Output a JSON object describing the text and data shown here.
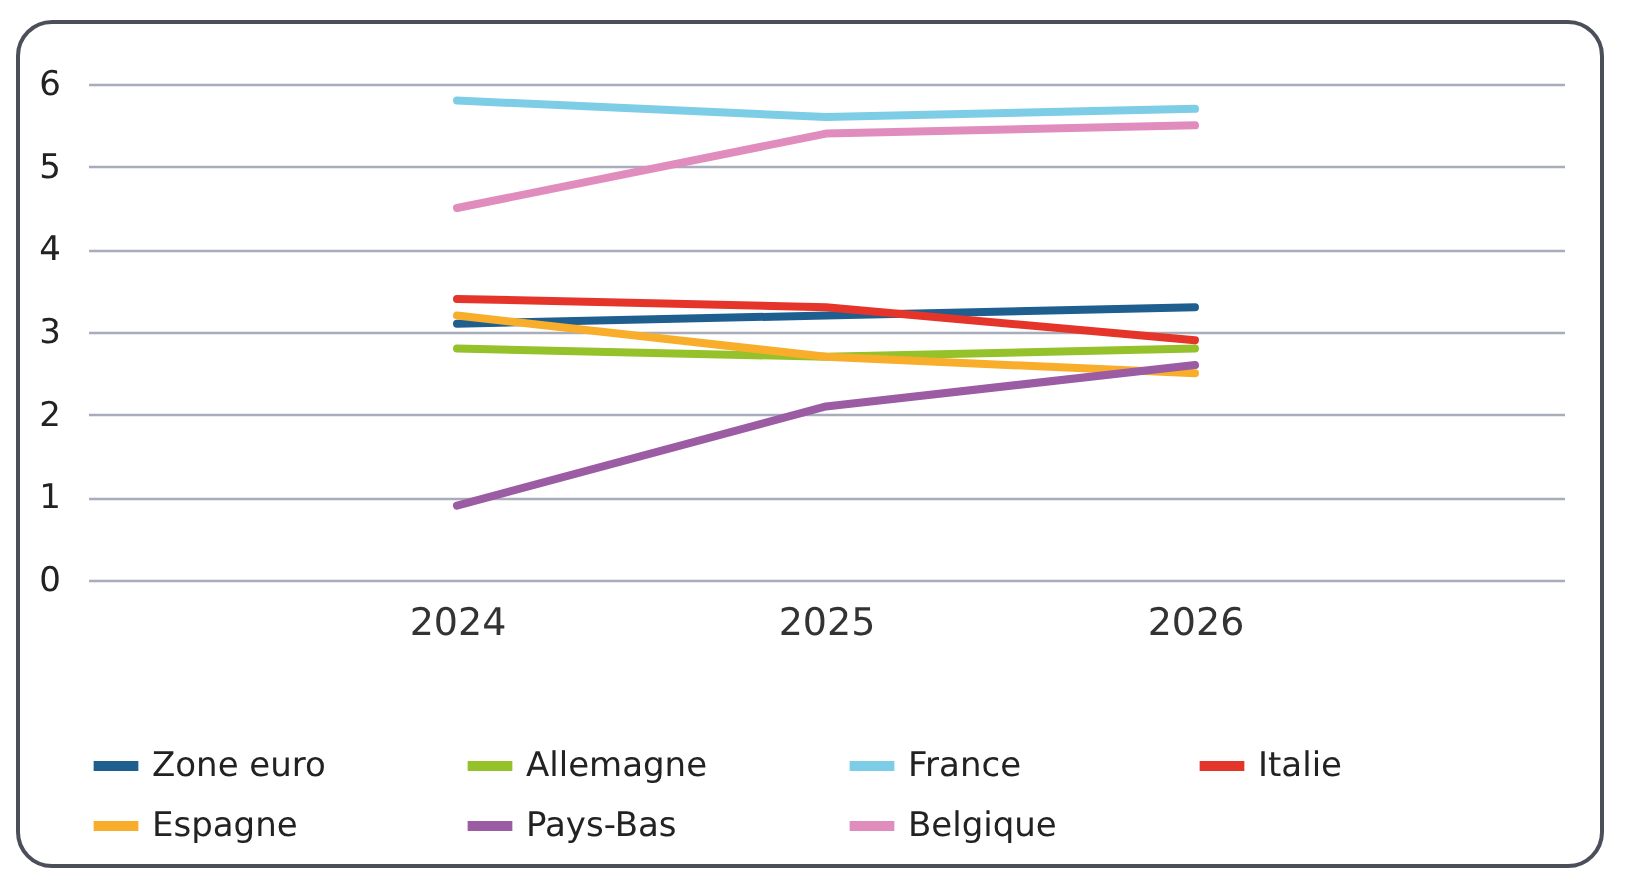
{
  "chart_data": {
    "type": "line",
    "categories": [
      "2024",
      "2025",
      "2026"
    ],
    "series": [
      {
        "name": "Zone euro",
        "color": "#1f5f8f",
        "values": [
          3.1,
          3.2,
          3.3
        ]
      },
      {
        "name": "Allemagne",
        "color": "#95c12b",
        "values": [
          2.8,
          2.7,
          2.8
        ]
      },
      {
        "name": "France",
        "color": "#7ecde6",
        "values": [
          5.8,
          5.6,
          5.7
        ]
      },
      {
        "name": "Italie",
        "color": "#e5352b",
        "values": [
          3.4,
          3.3,
          2.9
        ]
      },
      {
        "name": "Espagne",
        "color": "#f9ae2b",
        "values": [
          3.2,
          2.7,
          2.5
        ]
      },
      {
        "name": "Pays-Bas",
        "color": "#9b5ca4",
        "values": [
          0.9,
          2.1,
          2.6
        ]
      },
      {
        "name": "Belgique",
        "color": "#e08dbd",
        "values": [
          4.5,
          5.4,
          5.5
        ]
      }
    ],
    "ylim": [
      0,
      6
    ],
    "yticks": [
      0,
      1,
      2,
      3,
      4,
      5,
      6
    ],
    "grid": "y",
    "legend": "bottom",
    "marker": "none",
    "line_style": "solid"
  }
}
